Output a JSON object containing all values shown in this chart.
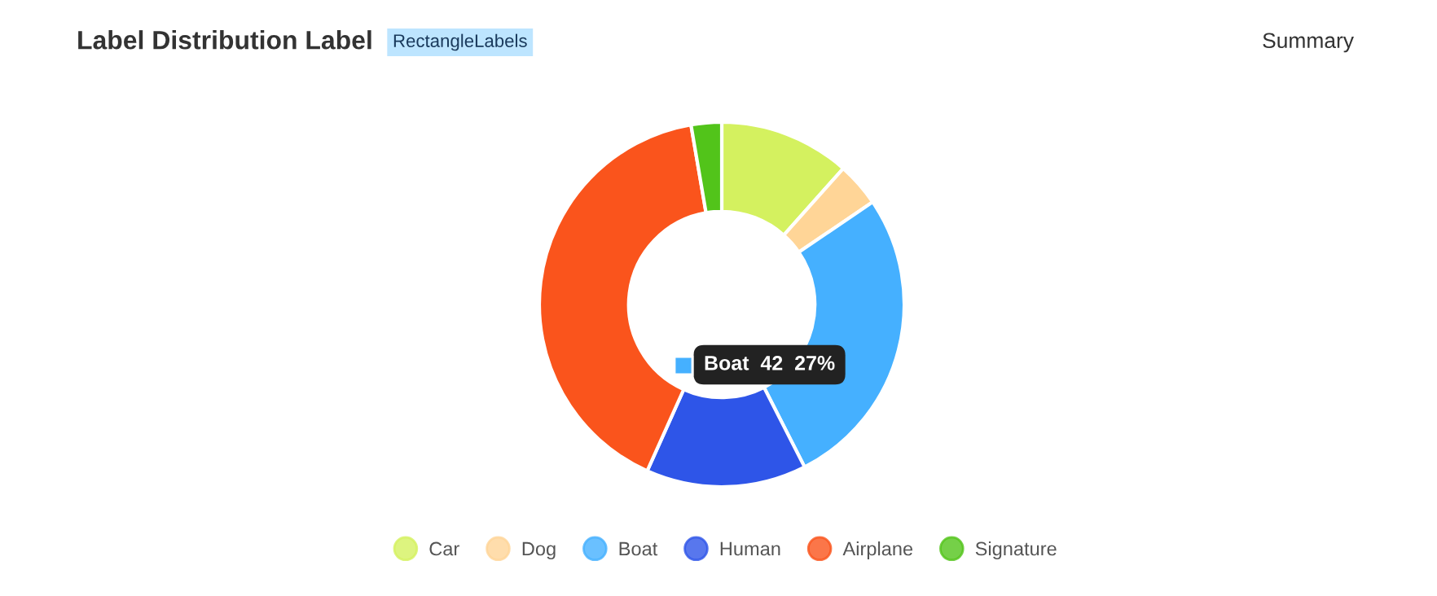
{
  "chart_data": {
    "type": "donut",
    "title": "Label Distribution Label",
    "subtitle": "RectangleLabels",
    "categories": [
      "Car",
      "Dog",
      "Boat",
      "Human",
      "Airplane",
      "Signature"
    ],
    "values": [
      11.6,
      3.9,
      27,
      14.2,
      40.6,
      2.7
    ],
    "colors": [
      "#d4f15f",
      "#ffd597",
      "#45b0ff",
      "#2e55e8",
      "#fa541c",
      "#52c41a"
    ],
    "legend": "bottom",
    "annotations": [
      "Summary",
      "Boat  42  27%"
    ]
  }
}
